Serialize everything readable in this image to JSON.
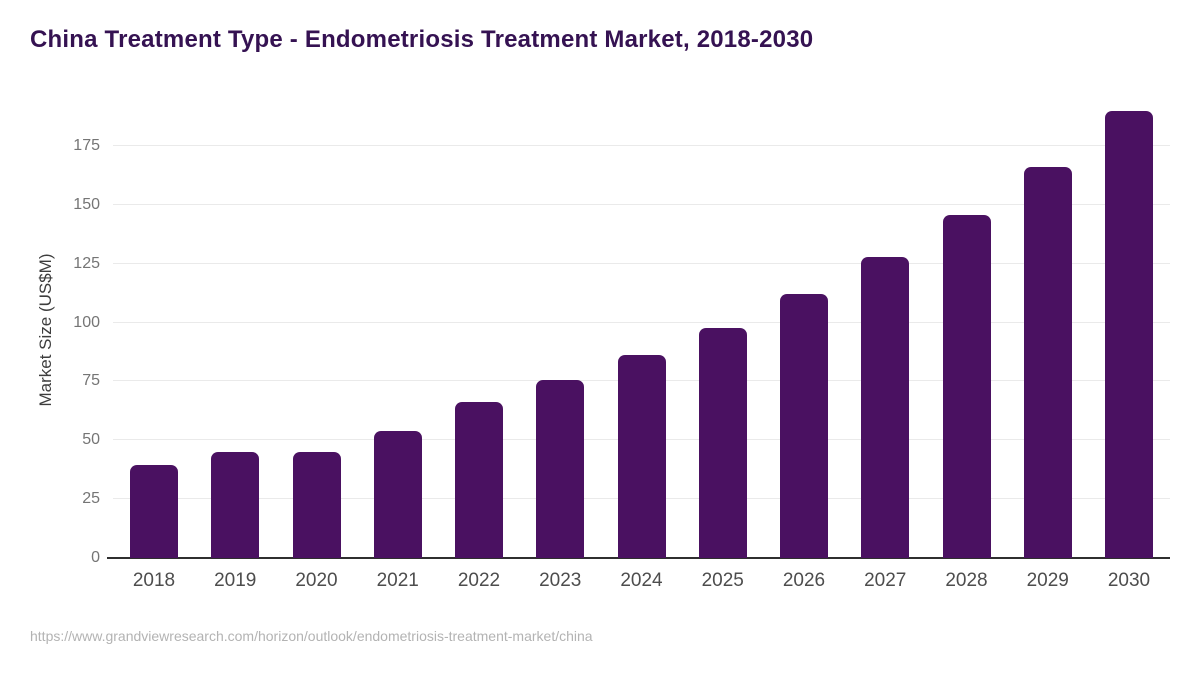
{
  "title": "China Treatment Type - Endometriosis Treatment Market, 2018-2030",
  "source_url": "https://www.grandviewresearch.com/horizon/outlook/endometriosis-treatment-market/china",
  "colors": {
    "background": "#ffffff",
    "bar": "#4a1161",
    "title": "#351252",
    "gridline": "#eaeaea",
    "axis_line": "#2f2f2f",
    "y_tick_label": "#757575",
    "x_tick_label": "#4d4d4d",
    "y_axis_title": "#3d3d3d",
    "source": "#b3b3b3"
  },
  "chart_data": {
    "type": "bar",
    "title": "China Treatment Type - Endometriosis Treatment Market, 2018-2030",
    "categories": [
      "2018",
      "2019",
      "2020",
      "2021",
      "2022",
      "2023",
      "2024",
      "2025",
      "2026",
      "2027",
      "2028",
      "2029",
      "2030"
    ],
    "values": [
      39.5,
      45.2,
      44.9,
      53.9,
      66.3,
      75.5,
      86.2,
      97.7,
      112.0,
      128.0,
      145.6,
      166.0,
      189.9
    ],
    "xlabel": "",
    "ylabel": "Market Size (US$M)",
    "ylim": [
      0,
      196.6
    ],
    "yticks": [
      0,
      25,
      50,
      75,
      100,
      125,
      150,
      175
    ],
    "grid": true,
    "legend": false,
    "bar_corner_radius": "rounded-top"
  }
}
